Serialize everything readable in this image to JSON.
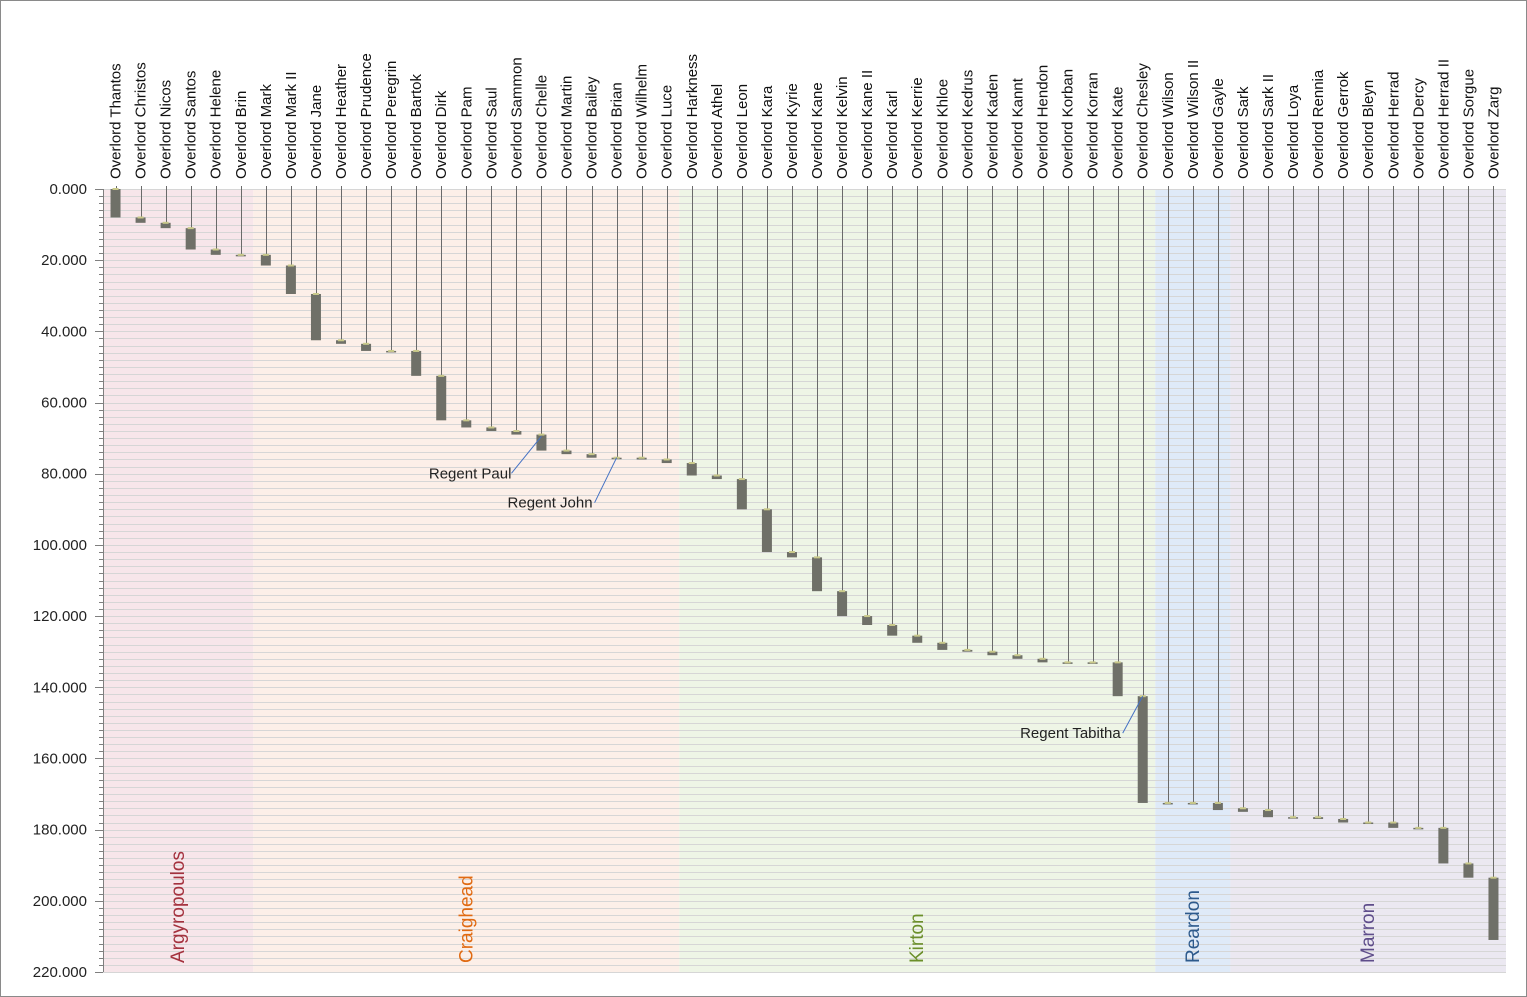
{
  "chart_data": {
    "type": "bar",
    "subtype": "floating-bar-reign-chart",
    "title": "",
    "xlabel": "",
    "ylabel": "",
    "y_axis": {
      "min": 0,
      "max": 220,
      "reversed": true,
      "major_step": 20,
      "minor_step": 2,
      "tick_labels": [
        "0.000",
        "20.000",
        "40.000",
        "60.000",
        "80.000",
        "100.000",
        "120.000",
        "140.000",
        "160.000",
        "180.000",
        "200.000",
        "220.000"
      ],
      "gridlines": true
    },
    "categories": [
      "Overlord Thantos",
      "Overlord Christos",
      "Overlord Nicos",
      "Overlord Santos",
      "Overlord Helene",
      "Overlord Brin",
      "Overlord Mark",
      "Overlord Mark II",
      "Overlord Jane",
      "Overlord Heather",
      "Overlord Prudence",
      "Overlord Peregrin",
      "Overlord Bartok",
      "Overlord Dirk",
      "Overlord Pam",
      "Overlord Saul",
      "Overlord Sammon",
      "Overlord Chelle",
      "Overlord Martin",
      "Overlord Bailey",
      "Overlord Brian",
      "Overlord Wilhelm",
      "Overlord Luce",
      "Overlord Harkness",
      "Overlord Athel",
      "Overlord Leon",
      "Overlord Kara",
      "Overlord Kyrie",
      "Overlord Kane",
      "Overlord Kelvin",
      "Overlord Kane II",
      "Overlord Karl",
      "Overlord Kerrie",
      "Overlord Khloe",
      "Overlord Kedrus",
      "Overlord Kaden",
      "Overlord Kannt",
      "Overlord Hendon",
      "Overlord Korban",
      "Overlord Korran",
      "Overlord Kate",
      "Overlord Chesley",
      "Overlord Wilson",
      "Overlord Wilson II",
      "Overlord Gayle",
      "Overlord Sark",
      "Overlord Sark II",
      "Overlord Loya",
      "Overlord Rennia",
      "Overlord Gerrok",
      "Overlord Bleyn",
      "Overlord Herrad",
      "Overlord Dercy",
      "Overlord Herrad II",
      "Overlord Sorgue",
      "Overlord Zarg"
    ],
    "series": [
      {
        "name": "Reign start",
        "values": [
          0.0,
          8.0,
          9.5,
          11.0,
          17.0,
          18.5,
          18.5,
          21.5,
          29.5,
          42.5,
          43.5,
          45.5,
          45.5,
          52.5,
          65.0,
          67.0,
          68.0,
          69.0,
          73.5,
          74.5,
          75.5,
          75.5,
          76.0,
          77.0,
          80.5,
          81.5,
          90.0,
          102.0,
          103.5,
          113.0,
          120.0,
          122.5,
          125.5,
          127.5,
          129.5,
          130.0,
          131.0,
          132.0,
          133.0,
          133.0,
          133.0,
          142.5,
          172.5,
          172.5,
          172.5,
          174.0,
          174.5,
          176.5,
          176.5,
          177.0,
          178.0,
          178.0,
          179.5,
          179.5,
          189.5,
          193.5
        ]
      },
      {
        "name": "Reign end",
        "values": [
          8.0,
          9.5,
          11.0,
          17.0,
          18.5,
          18.5,
          21.5,
          29.5,
          42.5,
          43.5,
          45.5,
          45.5,
          52.5,
          65.0,
          67.0,
          68.0,
          69.0,
          73.5,
          74.5,
          75.5,
          75.5,
          76.0,
          77.0,
          80.5,
          81.5,
          90.0,
          102.0,
          103.5,
          113.0,
          120.0,
          122.5,
          125.5,
          127.5,
          129.5,
          130.0,
          131.0,
          132.0,
          133.0,
          133.0,
          133.0,
          142.5,
          172.5,
          172.5,
          172.5,
          174.5,
          175.0,
          176.5,
          176.5,
          177.0,
          178.0,
          178.0,
          179.5,
          179.5,
          189.5,
          193.5,
          211.0
        ]
      }
    ],
    "dynasties": [
      {
        "name": "Argyropoulos",
        "first": 0,
        "last": 5,
        "color": "#f7e6ea",
        "label_color": "#a4323e"
      },
      {
        "name": "Craighead",
        "first": 6,
        "last": 22,
        "color": "#fcefe8",
        "label_color": "#e06a12"
      },
      {
        "name": "Kirton",
        "first": 23,
        "last": 41,
        "color": "#eef5e6",
        "label_color": "#6b8f2a"
      },
      {
        "name": "Reardon",
        "first": 42,
        "last": 44,
        "color": "#dfeaf8",
        "label_color": "#2e5a8c"
      },
      {
        "name": "Marron",
        "first": 45,
        "last": 55,
        "color": "#ebe8f1",
        "label_color": "#5e4d8a"
      }
    ],
    "annotations": [
      {
        "text": "Regent Paul",
        "category_index": 17,
        "value": 69.5
      },
      {
        "text": "Regent John",
        "category_index": 20,
        "value": 75.5
      },
      {
        "text": "Regent Tabitha",
        "category_index": 41,
        "value": 142.5
      }
    ],
    "colors": {
      "bar": "#6f7068",
      "marker": "#c9c98a",
      "grid": "#d6d6d6",
      "axis": "#7f7f7f",
      "leader": "#4472c4"
    }
  }
}
